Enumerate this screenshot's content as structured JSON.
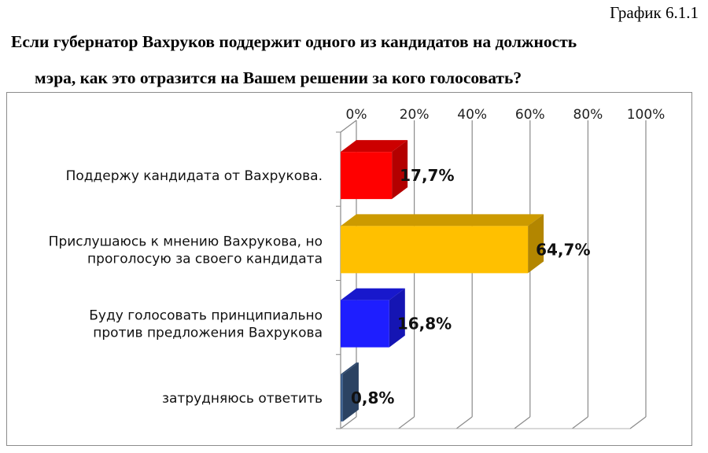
{
  "figure_label": "График 6.1.1",
  "title_lines": [
    "Если губернатор Вахруков поддержит одного из кандидатов на должность",
    "мэра, как это отразится на Вашем решении за кого голосовать?"
  ],
  "chart_data": {
    "type": "bar",
    "orientation": "horizontal",
    "style": "3d",
    "title": "Если губернатор Вахруков поддержит одного из кандидатов на должность мэра, как это отразится на Вашем решении за кого голосовать?",
    "categories": [
      [
        "Поддержу кандидата от Вахрукова."
      ],
      [
        "Прислушаюсь к мнению Вахрукова, но",
        "проголосую за своего кандидата"
      ],
      [
        "Буду голосовать принципиально",
        "против предложения Вахрукова"
      ],
      [
        "затрудняюсь ответить"
      ]
    ],
    "values": [
      17.7,
      64.7,
      16.8,
      0.8
    ],
    "data_labels": [
      "17,7%",
      "64,7%",
      "16,8%",
      "0,8%"
    ],
    "bar_colors": [
      "#ff0000",
      "#ffc000",
      "#1e1eff",
      "#3d5e8c"
    ],
    "xlim": [
      0,
      100
    ],
    "xticks": [
      0,
      20,
      40,
      60,
      80,
      100
    ],
    "xtick_labels": [
      "0%",
      "20%",
      "40%",
      "60%",
      "80%",
      "100%"
    ],
    "axis_position": "top",
    "grid": true,
    "legend": "none"
  }
}
